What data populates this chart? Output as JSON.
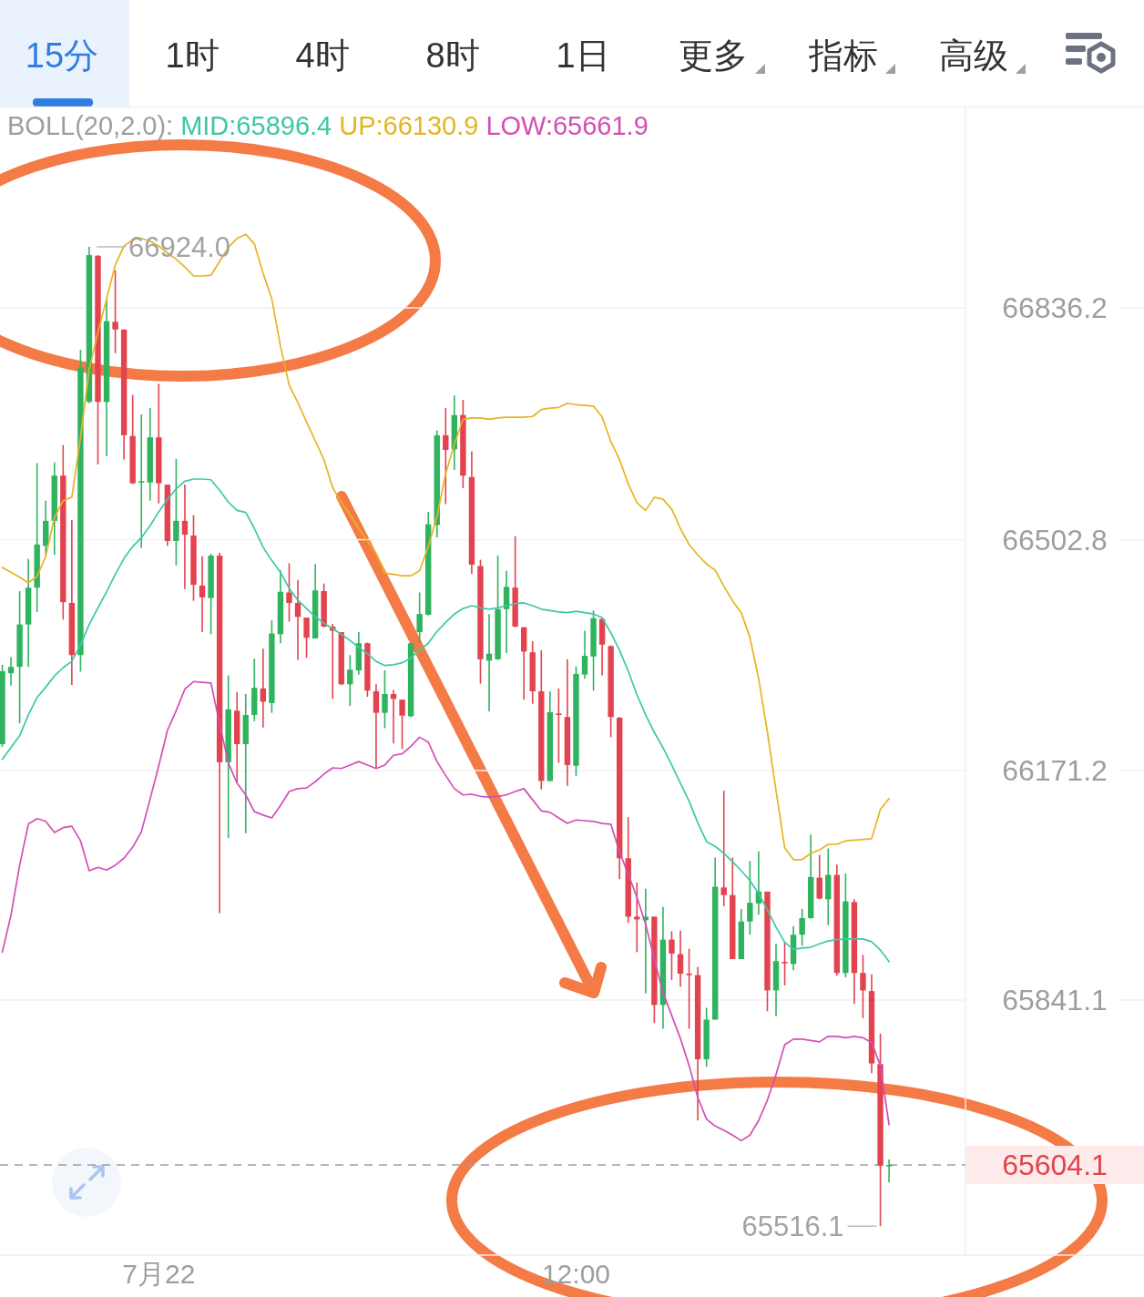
{
  "chart_data": {
    "type": "candlestick",
    "categories": [
      null,
      null,
      null,
      null,
      null,
      null,
      null,
      null,
      null,
      null,
      null,
      null,
      null,
      null,
      null,
      null,
      null,
      null,
      "7月22",
      null,
      null,
      null,
      null,
      null,
      null,
      null,
      null,
      null,
      null,
      null,
      null,
      null,
      null,
      null,
      null,
      null,
      null,
      null,
      null,
      null,
      null,
      null,
      null,
      null,
      null,
      null,
      null,
      null,
      null,
      null,
      null,
      null,
      null,
      null,
      null,
      null,
      null,
      null,
      null,
      null,
      null,
      null,
      null,
      null,
      null,
      null,
      "12:00",
      null,
      null,
      null,
      null,
      null,
      null,
      null,
      null,
      null,
      null,
      null,
      null,
      null,
      null,
      null,
      null,
      null,
      null,
      null,
      null,
      null,
      null,
      null,
      null,
      null,
      null,
      null,
      null,
      null,
      null,
      null,
      null,
      null,
      null,
      null,
      null
    ],
    "ohlc": [
      [
        66209,
        66323,
        66205,
        66314
      ],
      [
        66311,
        66334,
        66293,
        66320
      ],
      [
        66320,
        66429,
        66239,
        66381
      ],
      [
        66381,
        66475,
        66320,
        66434
      ],
      [
        66434,
        66613,
        66399,
        66496
      ],
      [
        66494,
        66559,
        66481,
        66530
      ],
      [
        66530,
        66614,
        66481,
        66595
      ],
      [
        66595,
        66639,
        66388,
        66413
      ],
      [
        66412,
        66531,
        66294,
        66337
      ],
      [
        66337,
        66776,
        66313,
        66750
      ],
      [
        66701,
        66924.0,
        66699,
        66912
      ],
      [
        66911,
        66912,
        66611,
        66701
      ],
      [
        66701,
        66849,
        66623,
        66817
      ],
      [
        66816,
        66890,
        66771,
        66805
      ],
      [
        66805,
        66805,
        66618,
        66653
      ],
      [
        66652,
        66711,
        66583,
        66584
      ],
      [
        66585,
        66683,
        66491,
        66587
      ],
      [
        66585,
        66692,
        66559,
        66650
      ],
      [
        66650,
        66727,
        66555,
        66584
      ],
      [
        66582,
        66582,
        66494,
        66501
      ],
      [
        66501,
        66619,
        66466,
        66530
      ],
      [
        66530,
        66582,
        66432,
        66510
      ],
      [
        66509,
        66538,
        66415,
        66438
      ],
      [
        66437,
        66479,
        66370,
        66420
      ],
      [
        66419,
        66483,
        66367,
        66480
      ],
      [
        66480,
        66484,
        65966,
        66183
      ],
      [
        66183,
        66308,
        66074,
        66259
      ],
      [
        66257,
        66284,
        66153,
        66209
      ],
      [
        66209,
        66281,
        66081,
        66251
      ],
      [
        66251,
        66332,
        66242,
        66290
      ],
      [
        66289,
        66346,
        66233,
        66270
      ],
      [
        66268,
        66387,
        66254,
        66368
      ],
      [
        66367,
        66459,
        66354,
        66428
      ],
      [
        66427,
        66469,
        66385,
        66412
      ],
      [
        66412,
        66445,
        66330,
        66392
      ],
      [
        66391,
        66391,
        66333,
        66362
      ],
      [
        66361,
        66468,
        66361,
        66430
      ],
      [
        66429,
        66440,
        66377,
        66378
      ],
      [
        66378,
        66382,
        66274,
        66372
      ],
      [
        66370,
        66370,
        66294,
        66295
      ],
      [
        66295,
        66337,
        66264,
        66316
      ],
      [
        66315,
        66370,
        66309,
        66354
      ],
      [
        66354,
        66355,
        66277,
        66286
      ],
      [
        66285,
        66295,
        66175,
        66254
      ],
      [
        66254,
        66315,
        66232,
        66281
      ],
      [
        66281,
        66287,
        66210,
        66274
      ],
      [
        66273,
        66273,
        66202,
        66250
      ],
      [
        66249,
        66355,
        66248,
        66354
      ],
      [
        66370,
        66427,
        66354,
        66396
      ],
      [
        66395,
        66543,
        66394,
        66525
      ],
      [
        66524,
        66660,
        66506,
        66653
      ],
      [
        66653,
        66692,
        66554,
        66632
      ],
      [
        66633,
        66710,
        66603,
        66682
      ],
      [
        66682,
        66704,
        66577,
        66595
      ],
      [
        66593,
        66630,
        66454,
        66467
      ],
      [
        66465,
        66474,
        66296,
        66331
      ],
      [
        66329,
        66396,
        66256,
        66339
      ],
      [
        66331,
        66480,
        66330,
        66403
      ],
      [
        66403,
        66458,
        66340,
        66435
      ],
      [
        66434,
        66508,
        66377,
        66378
      ],
      [
        66377,
        66377,
        66273,
        66342
      ],
      [
        66341,
        66357,
        66267,
        66285
      ],
      [
        66285,
        66344,
        66144,
        66156
      ],
      [
        66156,
        66285,
        66156,
        66255
      ],
      [
        66253,
        66289,
        66182,
        66251
      ],
      [
        66248,
        66331,
        66149,
        66179
      ],
      [
        66178,
        66321,
        66163,
        66310
      ],
      [
        66309,
        66372,
        66303,
        66336
      ],
      [
        66335,
        66401,
        66286,
        66390
      ],
      [
        66389,
        66390,
        66308,
        66352
      ],
      [
        66350,
        66351,
        66219,
        66248
      ],
      [
        66247,
        66248,
        66015,
        66045
      ],
      [
        66045,
        66104,
        65952,
        65961
      ],
      [
        65961,
        66010,
        65910,
        65957
      ],
      [
        65956,
        66001,
        65851,
        65961
      ],
      [
        65961,
        65961,
        65808,
        65834
      ],
      [
        65834,
        65975,
        65800,
        65928
      ],
      [
        65928,
        65940,
        65870,
        65908
      ],
      [
        65907,
        65941,
        65860,
        65879
      ],
      [
        65879,
        65915,
        65800,
        65877
      ],
      [
        65877,
        65889,
        65668,
        65756
      ],
      [
        65756,
        65830,
        65745,
        65813
      ],
      [
        65813,
        66046,
        65813,
        66004
      ],
      [
        66003,
        66142,
        65976,
        65992
      ],
      [
        65992,
        66046,
        65900,
        65900
      ],
      [
        65900,
        65972,
        65900,
        65954
      ],
      [
        65954,
        66041,
        65935,
        65981
      ],
      [
        65980,
        66055,
        65964,
        65997
      ],
      [
        65997,
        65997,
        65825,
        65855
      ],
      [
        65855,
        65922,
        65818,
        65897
      ],
      [
        65896,
        65925,
        65862,
        65894
      ],
      [
        65893,
        65947,
        65884,
        65935
      ],
      [
        65935,
        65972,
        65919,
        65959
      ],
      [
        65959,
        66079,
        65958,
        66018
      ],
      [
        66017,
        66050,
        65986,
        65987
      ],
      [
        65986,
        66059,
        65949,
        66021
      ],
      [
        66021,
        66036,
        65876,
        65880
      ],
      [
        65880,
        66023,
        65874,
        65983
      ],
      [
        65982,
        65986,
        65836,
        65880
      ],
      [
        65880,
        65906,
        65815,
        65855
      ],
      [
        65854,
        65878,
        65736,
        65750
      ],
      [
        65749,
        65793,
        65516.1,
        65603
      ],
      [
        65603,
        65612,
        65579,
        65604.1
      ]
    ],
    "colors": [
      "#2fb35f",
      "#2fb35f",
      "#2fb35f",
      "#2fb35f",
      "#2fb35f",
      "#2fb35f",
      "#2fb35f",
      "#e2434e",
      "#e2434e",
      "#2fb35f",
      "#2fb35f",
      "#e2434e",
      "#2fb35f",
      "#e2434e",
      "#e2434e",
      "#e2434e",
      "#2fb35f",
      "#2fb35f",
      "#e2434e",
      "#e2434e",
      "#2fb35f",
      "#e2434e",
      "#e2434e",
      "#e2434e",
      "#2fb35f",
      "#e2434e",
      "#2fb35f",
      "#e2434e",
      "#2fb35f",
      "#2fb35f",
      "#e2434e",
      "#2fb35f",
      "#2fb35f",
      "#e2434e",
      "#e2434e",
      "#e2434e",
      "#2fb35f",
      "#e2434e",
      "#e2434e",
      "#e2434e",
      "#2fb35f",
      "#2fb35f",
      "#e2434e",
      "#e2434e",
      "#2fb35f",
      "#e2434e",
      "#e2434e",
      "#2fb35f",
      "#2fb35f",
      "#2fb35f",
      "#2fb35f",
      "#e2434e",
      "#2fb35f",
      "#e2434e",
      "#e2434e",
      "#e2434e",
      "#2fb35f",
      "#2fb35f",
      "#2fb35f",
      "#e2434e",
      "#e2434e",
      "#e2434e",
      "#e2434e",
      "#2fb35f",
      "#e2434e",
      "#e2434e",
      "#2fb35f",
      "#2fb35f",
      "#2fb35f",
      "#e2434e",
      "#e2434e",
      "#e2434e",
      "#e2434e",
      "#e2434e",
      "#2fb35f",
      "#e2434e",
      "#2fb35f",
      "#e2434e",
      "#e2434e",
      "#e2434e",
      "#e2434e",
      "#2fb35f",
      "#2fb35f",
      "#e2434e",
      "#e2434e",
      "#2fb35f",
      "#2fb35f",
      "#2fb35f",
      "#e2434e",
      "#2fb35f",
      "#e2434e",
      "#2fb35f",
      "#2fb35f",
      "#2fb35f",
      "#e2434e",
      "#2fb35f",
      "#e2434e",
      "#2fb35f",
      "#e2434e",
      "#e2434e",
      "#e2434e",
      "#e2434e",
      "#2fb35f"
    ],
    "series": [
      {
        "name": "MID:65896.4",
        "type": "line",
        "color": "#3cc8a6",
        "values": [
          66187,
          66204,
          66221,
          66251,
          66276,
          66291,
          66307,
          66319,
          66328,
          66352,
          66381,
          66405,
          66428,
          66453,
          66476,
          66493,
          66506,
          66523,
          66543,
          66561,
          66576,
          66587,
          66590,
          66590,
          66589,
          66574,
          66557,
          66545,
          66542,
          66519,
          66492,
          66473,
          66456,
          66433,
          66416,
          66404,
          66392,
          66383,
          66375,
          66367,
          66358,
          66348,
          66339,
          66328,
          66322,
          66323,
          66326,
          66333,
          66344,
          66354,
          66371,
          66384,
          66396,
          66404,
          66408,
          66405,
          66403,
          66405,
          66408,
          66411,
          66412,
          66408,
          66403,
          66401,
          66399,
          66398,
          66400,
          66398,
          66396,
          66391,
          66369,
          66344,
          66314,
          66280,
          66251,
          66226,
          66204,
          66179,
          66153,
          66127,
          66096,
          66069,
          66062,
          66052,
          66040,
          66027,
          66013,
          65994,
          65971,
          65946,
          65924,
          65914,
          65916,
          65917,
          65922,
          65926,
          65928,
          65929,
          65929,
          65929,
          65925,
          65913,
          65896.4
        ]
      },
      {
        "name": "UP:66130.9",
        "type": "line",
        "color": "#e6b422",
        "values": [
          66463,
          66456,
          66449,
          66441,
          66450,
          66479,
          66535,
          66559,
          66564,
          66650,
          66748,
          66801,
          66849,
          66898,
          66925,
          66934,
          66936,
          66932,
          66925,
          66915,
          66906,
          66895,
          66882,
          66882,
          66883,
          66903,
          66923,
          66936,
          66942,
          66928,
          66886,
          66849,
          66781,
          66725,
          66700,
          66672,
          66645,
          66618,
          66578,
          66556,
          66539,
          66519,
          66501,
          66483,
          66455,
          66453,
          66451,
          66451,
          66458,
          66493,
          66536,
          66598,
          66640,
          66676,
          66678,
          66678,
          66676,
          66678,
          66679,
          66679,
          66679,
          66680,
          66690,
          66692,
          66693,
          66699,
          66697,
          66696,
          66695,
          66679,
          66644,
          66618,
          66583,
          66556,
          66545,
          66564,
          66561,
          66547,
          66519,
          66496,
          66481,
          66468,
          66459,
          66436,
          66415,
          66398,
          66362,
          66303,
          66227,
          66142,
          66060,
          66043,
          66043,
          66052,
          66057,
          66065,
          66065,
          66070,
          66071,
          66072,
          66073,
          66115,
          66130.9
        ]
      },
      {
        "name": "LOW:65661.9",
        "type": "line",
        "color": "#d24fb5",
        "values": [
          65910,
          65963,
          66035,
          66094,
          66102,
          66098,
          66082,
          66089,
          66091,
          66070,
          66027,
          66032,
          66028,
          66035,
          66045,
          66061,
          66083,
          66130,
          66178,
          66229,
          66257,
          66288,
          66299,
          66298,
          66297,
          66238,
          66182,
          66153,
          66136,
          66112,
          66107,
          66103,
          66121,
          66141,
          66145,
          66146,
          66155,
          66166,
          66175,
          66174,
          66179,
          66184,
          66179,
          66174,
          66179,
          66193,
          66195,
          66206,
          66219,
          66212,
          66184,
          66164,
          66145,
          66136,
          66137,
          66134,
          66133,
          66134,
          66136,
          66141,
          66145,
          66129,
          66113,
          66111,
          66103,
          66095,
          66100,
          66099,
          66098,
          66095,
          66094,
          66054,
          66022,
          65989,
          65950,
          65900,
          65852,
          65819,
          65786,
          65747,
          65701,
          65670,
          65660,
          65654,
          65647,
          65639,
          65647,
          65668,
          65697,
          65734,
          65777,
          65785,
          65785,
          65783,
          65781,
          65789,
          65789,
          65787,
          65789,
          65787,
          65780,
          65747,
          65661.9
        ]
      }
    ],
    "legend_title": "BOLL(20,2.0):",
    "legend": "top",
    "ylim": [
      65474.5,
      67124.2
    ],
    "yticks": [
      66836.2,
      66502.8,
      66171.2,
      65841.1
    ],
    "grid": "y",
    "ref_lines": [
      {
        "axis": "y",
        "value": 65604.1,
        "label": "65604.1",
        "color": "#9e9e9e",
        "line_style": "dashed"
      }
    ],
    "annotations": [
      "15分",
      "1时",
      "4时",
      "8时",
      "1日",
      "更多",
      "指标",
      "高级",
      "66924.0",
      "65516.1"
    ]
  }
}
